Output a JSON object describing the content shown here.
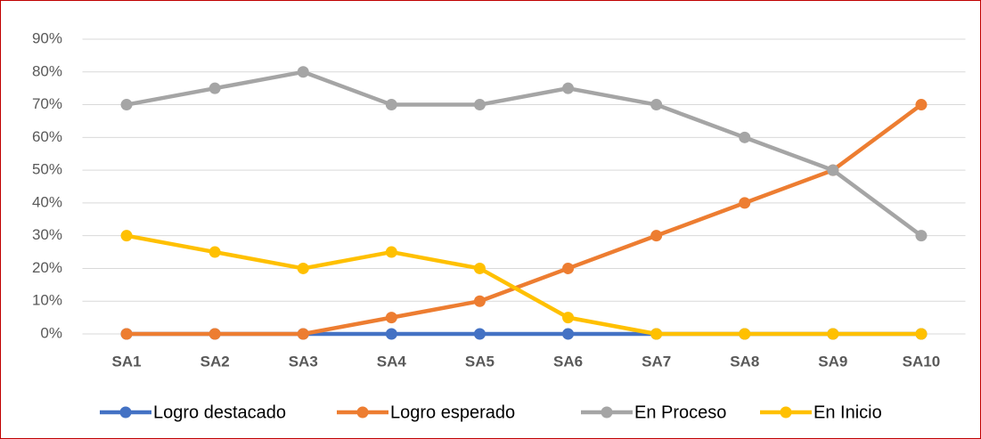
{
  "chart_data": {
    "type": "line",
    "categories": [
      "SA1",
      "SA2",
      "SA3",
      "SA4",
      "SA5",
      "SA6",
      "SA7",
      "SA8",
      "SA9",
      "SA10"
    ],
    "series": [
      {
        "name": "Logro destacado",
        "color": "#4472c4",
        "values": [
          0,
          0,
          0,
          0,
          0,
          0,
          0,
          0,
          0,
          0
        ]
      },
      {
        "name": "Logro esperado",
        "color": "#ed7d31",
        "values": [
          0,
          0,
          0,
          5,
          10,
          20,
          30,
          40,
          50,
          70
        ]
      },
      {
        "name": "En Proceso",
        "color": "#a5a5a5",
        "values": [
          70,
          75,
          80,
          70,
          70,
          75,
          70,
          60,
          50,
          30
        ]
      },
      {
        "name": "En Inicio",
        "color": "#ffc000",
        "values": [
          30,
          25,
          20,
          25,
          20,
          5,
          0,
          0,
          0,
          0
        ]
      }
    ],
    "ylim": [
      0,
      90
    ],
    "yticks": [
      {
        "value": 0,
        "label": "0%"
      },
      {
        "value": 10,
        "label": "10%"
      },
      {
        "value": 20,
        "label": "20%"
      },
      {
        "value": 30,
        "label": "30%"
      },
      {
        "value": 40,
        "label": "40%"
      },
      {
        "value": 50,
        "label": "50%"
      },
      {
        "value": 60,
        "label": "60%"
      },
      {
        "value": 70,
        "label": "70%"
      },
      {
        "value": 80,
        "label": "80%"
      },
      {
        "value": 90,
        "label": "90%"
      }
    ],
    "grid": true,
    "legend": "bottom"
  }
}
